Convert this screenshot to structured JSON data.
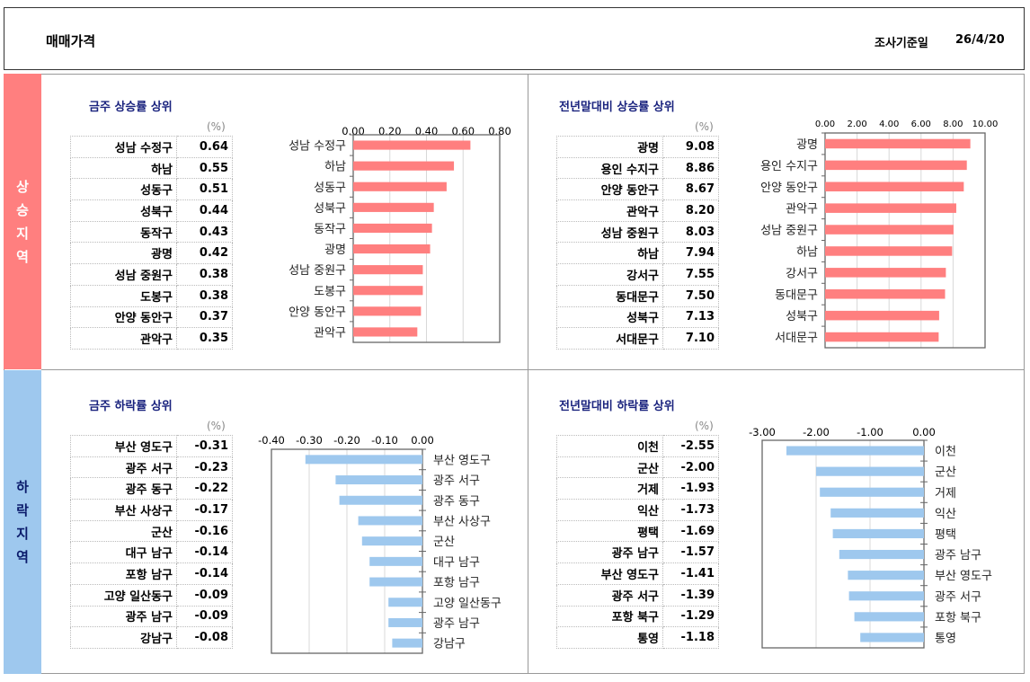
{
  "header": {
    "title": "매매가격",
    "date_label": "조사기준일",
    "date_value": "26/4/20"
  },
  "sidebar": {
    "rise": [
      "상",
      "승",
      "지",
      "역"
    ],
    "fall": [
      "하",
      "락",
      "지",
      "역"
    ]
  },
  "unit": "(%)",
  "colors": {
    "rise": "#ff7f7f",
    "fall": "#9ec8ee"
  },
  "panels": [
    {
      "title": "금주 상승률 상위",
      "rows": [
        [
          "성남 수정구",
          "0.64"
        ],
        [
          "하남",
          "0.55"
        ],
        [
          "성동구",
          "0.51"
        ],
        [
          "성북구",
          "0.44"
        ],
        [
          "동작구",
          "0.43"
        ],
        [
          "광명",
          "0.42"
        ],
        [
          "성남 중원구",
          "0.38"
        ],
        [
          "도봉구",
          "0.38"
        ],
        [
          "안양 동안구",
          "0.37"
        ],
        [
          "관악구",
          "0.35"
        ]
      ]
    },
    {
      "title": "전년말대비 상승률 상위",
      "rows": [
        [
          "광명",
          "9.08"
        ],
        [
          "용인 수지구",
          "8.86"
        ],
        [
          "안양 동안구",
          "8.67"
        ],
        [
          "관악구",
          "8.20"
        ],
        [
          "성남 중원구",
          "8.03"
        ],
        [
          "하남",
          "7.94"
        ],
        [
          "강서구",
          "7.55"
        ],
        [
          "동대문구",
          "7.50"
        ],
        [
          "성북구",
          "7.13"
        ],
        [
          "서대문구",
          "7.10"
        ]
      ]
    },
    {
      "title": "금주 하락률 상위",
      "rows": [
        [
          "부산 영도구",
          "-0.31"
        ],
        [
          "광주 서구",
          "-0.23"
        ],
        [
          "광주 동구",
          "-0.22"
        ],
        [
          "부산 사상구",
          "-0.17"
        ],
        [
          "군산",
          "-0.16"
        ],
        [
          "대구 남구",
          "-0.14"
        ],
        [
          "포항 남구",
          "-0.14"
        ],
        [
          "고양 일산동구",
          "-0.09"
        ],
        [
          "광주 남구",
          "-0.09"
        ],
        [
          "강남구",
          "-0.08"
        ]
      ]
    },
    {
      "title": "전년말대비 하락률 상위",
      "rows": [
        [
          "이천",
          "-2.55"
        ],
        [
          "군산",
          "-2.00"
        ],
        [
          "거제",
          "-1.93"
        ],
        [
          "익산",
          "-1.73"
        ],
        [
          "평택",
          "-1.69"
        ],
        [
          "광주 남구",
          "-1.57"
        ],
        [
          "부산 영도구",
          "-1.41"
        ],
        [
          "광주 서구",
          "-1.39"
        ],
        [
          "포항 북구",
          "-1.29"
        ],
        [
          "통영",
          "-1.18"
        ]
      ]
    }
  ],
  "chart_data": [
    {
      "type": "bar",
      "orientation": "horizontal",
      "categories": [
        "성남 수정구",
        "하남",
        "성동구",
        "성북구",
        "동작구",
        "광명",
        "성남 중원구",
        "도봉구",
        "안양 동안구",
        "관악구"
      ],
      "values": [
        0.64,
        0.55,
        0.51,
        0.44,
        0.43,
        0.42,
        0.38,
        0.38,
        0.37,
        0.35
      ],
      "xlim": [
        0,
        0.8
      ],
      "ticks": [
        "0.00",
        "0.20",
        "0.40",
        "0.60",
        "0.80"
      ],
      "tickvals": [
        0,
        0.2,
        0.4,
        0.6,
        0.8
      ]
    },
    {
      "type": "bar",
      "orientation": "horizontal",
      "categories": [
        "광명",
        "용인 수지구",
        "안양 동안구",
        "관악구",
        "성남 중원구",
        "하남",
        "강서구",
        "동대문구",
        "성북구",
        "서대문구"
      ],
      "values": [
        9.08,
        8.86,
        8.67,
        8.2,
        8.03,
        7.94,
        7.55,
        7.5,
        7.13,
        7.1
      ],
      "xlim": [
        0,
        10
      ],
      "ticks": [
        "0.00",
        "2.00",
        "4.00",
        "6.00",
        "8.00",
        "10.00"
      ],
      "tickvals": [
        0,
        2,
        4,
        6,
        8,
        10
      ]
    },
    {
      "type": "bar",
      "orientation": "horizontal",
      "categories": [
        "부산 영도구",
        "광주 서구",
        "광주 동구",
        "부산 사상구",
        "군산",
        "대구 남구",
        "포항 남구",
        "고양 일산동구",
        "광주 남구",
        "강남구"
      ],
      "values": [
        -0.31,
        -0.23,
        -0.22,
        -0.17,
        -0.16,
        -0.14,
        -0.14,
        -0.09,
        -0.09,
        -0.08
      ],
      "xlim": [
        -0.4,
        0
      ],
      "ticks": [
        "-0.40",
        "-0.30",
        "-0.20",
        "-0.10",
        "0.00"
      ],
      "tickvals": [
        -0.4,
        -0.3,
        -0.2,
        -0.1,
        0
      ]
    },
    {
      "type": "bar",
      "orientation": "horizontal",
      "categories": [
        "이천",
        "군산",
        "거제",
        "익산",
        "평택",
        "광주 남구",
        "부산 영도구",
        "광주 서구",
        "포항 북구",
        "통영"
      ],
      "values": [
        -2.55,
        -2.0,
        -1.93,
        -1.73,
        -1.69,
        -1.57,
        -1.41,
        -1.39,
        -1.29,
        -1.18
      ],
      "xlim": [
        -3,
        0
      ],
      "ticks": [
        "-3.00",
        "-2.00",
        "-1.00",
        "0.00"
      ],
      "tickvals": [
        -3,
        -2,
        -1,
        0
      ]
    }
  ]
}
